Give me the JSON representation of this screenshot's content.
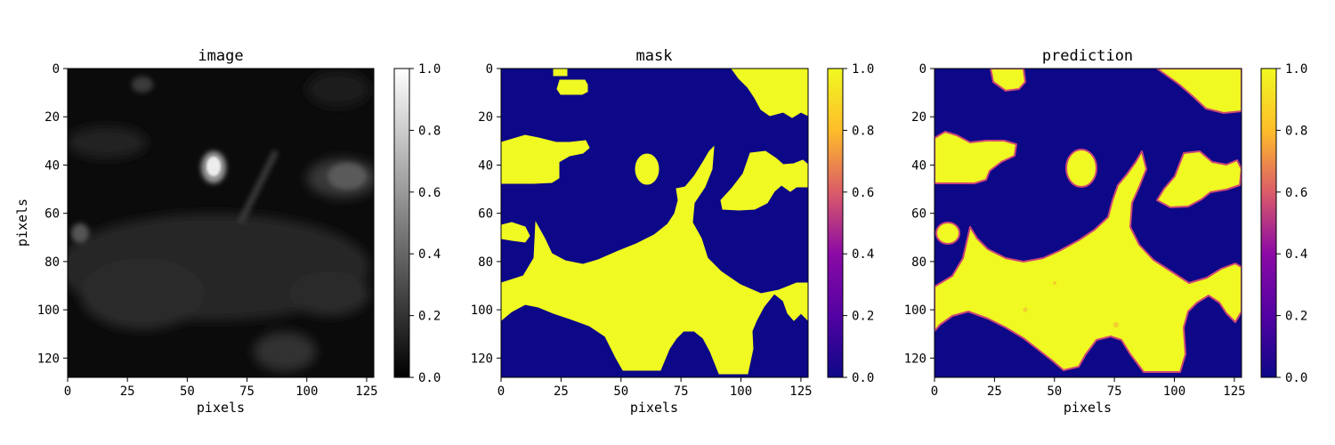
{
  "chart_data": [
    {
      "type": "heatmap",
      "title": "image",
      "xlabel": "pixels",
      "ylabel": "pixels",
      "colormap": "gray",
      "colors": [
        "#000000",
        "#ffffff"
      ],
      "xlim": [
        0,
        128
      ],
      "ylim": [
        128,
        0
      ],
      "xticks": [
        0,
        25,
        50,
        75,
        100,
        125
      ],
      "yticks": [
        0,
        20,
        40,
        60,
        80,
        100,
        120
      ],
      "colorbar": {
        "range": [
          0.0,
          1.0
        ],
        "ticks": [
          "0.0",
          "0.2",
          "0.4",
          "0.6",
          "0.8",
          "1.0"
        ]
      },
      "grid": false
    },
    {
      "type": "heatmap",
      "title": "mask",
      "xlabel": "pixels",
      "ylabel": "",
      "colormap": "plasma",
      "colors": [
        "#0d0887",
        "#f0f921"
      ],
      "xlim": [
        0,
        128
      ],
      "ylim": [
        128,
        0
      ],
      "xticks": [
        0,
        25,
        50,
        75,
        100,
        125
      ],
      "yticks": [
        0,
        20,
        40,
        60,
        80,
        100,
        120
      ],
      "colorbar": {
        "range": [
          0.0,
          1.0
        ],
        "ticks": [
          "0.0",
          "0.2",
          "0.4",
          "0.6",
          "0.8",
          "1.0"
        ]
      },
      "grid": false
    },
    {
      "type": "heatmap",
      "title": "prediction",
      "xlabel": "pixels",
      "ylabel": "",
      "colormap": "plasma",
      "colors": [
        "#0d0887",
        "#f0f921"
      ],
      "xlim": [
        0,
        128
      ],
      "ylim": [
        128,
        0
      ],
      "xticks": [
        0,
        25,
        50,
        75,
        100,
        125
      ],
      "yticks": [
        0,
        20,
        40,
        60,
        80,
        100,
        120
      ],
      "colorbar": {
        "range": [
          0.0,
          1.0
        ],
        "ticks": [
          "0.0",
          "0.2",
          "0.4",
          "0.6",
          "0.8",
          "1.0"
        ]
      },
      "grid": false
    }
  ]
}
